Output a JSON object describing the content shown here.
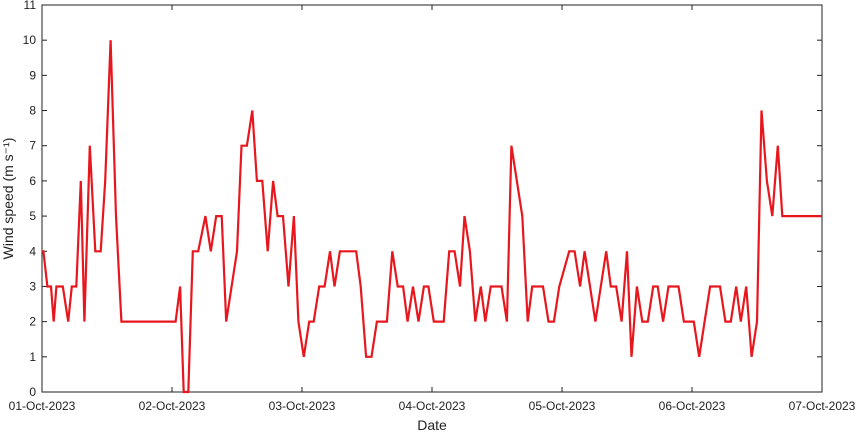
{
  "chart_data": {
    "type": "line",
    "xlabel": "Date",
    "ylabel": "Wind speed (m s⁻¹)",
    "x_unit": "days",
    "x_tick_labels": [
      "01-Oct-2023",
      "02-Oct-2023",
      "03-Oct-2023",
      "04-Oct-2023",
      "05-Oct-2023",
      "06-Oct-2023",
      "07-Oct-2023"
    ],
    "y_ticks": [
      0,
      1,
      2,
      3,
      4,
      5,
      6,
      7,
      8,
      9,
      10,
      11
    ],
    "ylim": [
      0,
      11
    ],
    "xlim": [
      "2023-10-01 00:00",
      "2023-10-07 00:00"
    ],
    "grid": false,
    "legend": "none",
    "series": [
      {
        "color": "#e8171d",
        "points": [
          [
            "2023-10-01 00:00",
            4
          ],
          [
            "2023-10-01 00:15",
            4
          ],
          [
            "2023-10-01 01:00",
            3
          ],
          [
            "2023-10-01 01:40",
            3
          ],
          [
            "2023-10-01 02:10",
            2
          ],
          [
            "2023-10-01 02:40",
            3
          ],
          [
            "2023-10-01 03:50",
            3
          ],
          [
            "2023-10-01 04:50",
            2
          ],
          [
            "2023-10-01 05:30",
            3
          ],
          [
            "2023-10-01 06:20",
            3
          ],
          [
            "2023-10-01 07:10",
            6
          ],
          [
            "2023-10-01 07:50",
            2
          ],
          [
            "2023-10-01 08:50",
            7
          ],
          [
            "2023-10-01 09:50",
            4
          ],
          [
            "2023-10-01 10:50",
            4
          ],
          [
            "2023-10-01 11:40",
            6
          ],
          [
            "2023-10-01 12:40",
            10
          ],
          [
            "2023-10-01 13:40",
            5
          ],
          [
            "2023-10-01 14:40",
            2
          ],
          [
            "2023-10-02 00:40",
            2
          ],
          [
            "2023-10-02 01:30",
            3
          ],
          [
            "2023-10-02 02:10",
            0
          ],
          [
            "2023-10-02 03:00",
            0
          ],
          [
            "2023-10-02 03:50",
            4
          ],
          [
            "2023-10-02 04:50",
            4
          ],
          [
            "2023-10-02 06:10",
            5
          ],
          [
            "2023-10-02 07:10",
            4
          ],
          [
            "2023-10-02 08:10",
            5
          ],
          [
            "2023-10-02 09:10",
            5
          ],
          [
            "2023-10-02 10:00",
            2
          ],
          [
            "2023-10-02 11:00",
            3
          ],
          [
            "2023-10-02 12:00",
            4
          ],
          [
            "2023-10-02 12:50",
            7
          ],
          [
            "2023-10-02 13:50",
            7
          ],
          [
            "2023-10-02 14:50",
            8
          ],
          [
            "2023-10-02 15:40",
            6
          ],
          [
            "2023-10-02 16:40",
            6
          ],
          [
            "2023-10-02 17:40",
            4
          ],
          [
            "2023-10-02 18:40",
            6
          ],
          [
            "2023-10-02 19:30",
            5
          ],
          [
            "2023-10-02 20:30",
            5
          ],
          [
            "2023-10-02 21:30",
            3
          ],
          [
            "2023-10-02 22:30",
            5
          ],
          [
            "2023-10-02 23:20",
            2
          ],
          [
            "2023-10-03 00:20",
            1
          ],
          [
            "2023-10-03 01:20",
            2
          ],
          [
            "2023-10-03 02:10",
            2
          ],
          [
            "2023-10-03 03:10",
            3
          ],
          [
            "2023-10-03 04:10",
            3
          ],
          [
            "2023-10-03 05:10",
            4
          ],
          [
            "2023-10-03 06:00",
            3
          ],
          [
            "2023-10-03 07:00",
            4
          ],
          [
            "2023-10-03 09:00",
            4
          ],
          [
            "2023-10-03 10:00",
            4
          ],
          [
            "2023-10-03 10:50",
            3
          ],
          [
            "2023-10-03 11:50",
            1
          ],
          [
            "2023-10-03 12:50",
            1
          ],
          [
            "2023-10-03 13:50",
            2
          ],
          [
            "2023-10-03 15:40",
            2
          ],
          [
            "2023-10-03 16:40",
            4
          ],
          [
            "2023-10-03 17:40",
            3
          ],
          [
            "2023-10-03 18:40",
            3
          ],
          [
            "2023-10-03 19:30",
            2
          ],
          [
            "2023-10-03 20:30",
            3
          ],
          [
            "2023-10-03 21:30",
            2
          ],
          [
            "2023-10-03 22:30",
            3
          ],
          [
            "2023-10-03 23:20",
            3
          ],
          [
            "2023-10-04 00:20",
            2
          ],
          [
            "2023-10-04 02:10",
            2
          ],
          [
            "2023-10-04 03:10",
            4
          ],
          [
            "2023-10-04 04:10",
            4
          ],
          [
            "2023-10-04 05:10",
            3
          ],
          [
            "2023-10-04 06:00",
            5
          ],
          [
            "2023-10-04 07:00",
            4
          ],
          [
            "2023-10-04 08:00",
            2
          ],
          [
            "2023-10-04 09:00",
            3
          ],
          [
            "2023-10-04 09:50",
            2
          ],
          [
            "2023-10-04 10:50",
            3
          ],
          [
            "2023-10-04 12:50",
            3
          ],
          [
            "2023-10-04 13:50",
            2
          ],
          [
            "2023-10-04 14:40",
            7
          ],
          [
            "2023-10-04 16:40",
            5
          ],
          [
            "2023-10-04 17:40",
            2
          ],
          [
            "2023-10-04 18:30",
            3
          ],
          [
            "2023-10-04 20:30",
            3
          ],
          [
            "2023-10-04 21:30",
            2
          ],
          [
            "2023-10-04 22:30",
            2
          ],
          [
            "2023-10-04 23:30",
            3
          ],
          [
            "2023-10-05 01:20",
            4
          ],
          [
            "2023-10-05 02:20",
            4
          ],
          [
            "2023-10-05 03:20",
            3
          ],
          [
            "2023-10-05 04:10",
            4
          ],
          [
            "2023-10-05 06:10",
            2
          ],
          [
            "2023-10-05 07:10",
            3
          ],
          [
            "2023-10-05 08:10",
            4
          ],
          [
            "2023-10-05 09:00",
            3
          ],
          [
            "2023-10-05 10:00",
            3
          ],
          [
            "2023-10-05 11:00",
            2
          ],
          [
            "2023-10-05 12:00",
            4
          ],
          [
            "2023-10-05 12:50",
            1
          ],
          [
            "2023-10-05 13:50",
            3
          ],
          [
            "2023-10-05 14:50",
            2
          ],
          [
            "2023-10-05 15:50",
            2
          ],
          [
            "2023-10-05 16:50",
            3
          ],
          [
            "2023-10-05 17:40",
            3
          ],
          [
            "2023-10-05 18:40",
            2
          ],
          [
            "2023-10-05 19:40",
            3
          ],
          [
            "2023-10-05 21:30",
            3
          ],
          [
            "2023-10-05 22:30",
            2
          ],
          [
            "2023-10-06 00:20",
            2
          ],
          [
            "2023-10-06 01:20",
            1
          ],
          [
            "2023-10-06 02:20",
            2
          ],
          [
            "2023-10-06 03:20",
            3
          ],
          [
            "2023-10-06 05:10",
            3
          ],
          [
            "2023-10-06 06:10",
            2
          ],
          [
            "2023-10-06 07:10",
            2
          ],
          [
            "2023-10-06 08:10",
            3
          ],
          [
            "2023-10-06 09:00",
            2
          ],
          [
            "2023-10-06 10:00",
            3
          ],
          [
            "2023-10-06 11:00",
            1
          ],
          [
            "2023-10-06 12:00",
            2
          ],
          [
            "2023-10-06 12:50",
            8
          ],
          [
            "2023-10-06 13:50",
            6
          ],
          [
            "2023-10-06 14:50",
            5
          ],
          [
            "2023-10-06 15:50",
            7
          ],
          [
            "2023-10-06 16:40",
            5
          ],
          [
            "2023-10-07 00:00",
            5
          ]
        ]
      }
    ]
  }
}
